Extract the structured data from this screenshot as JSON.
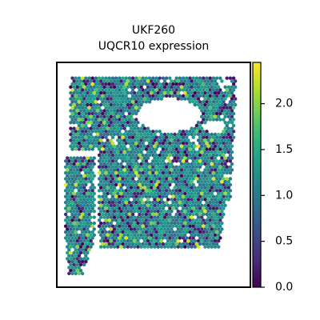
{
  "chart_data": {
    "type": "scatter",
    "subtype": "spatial-hexbin",
    "title_line1": "UKF260",
    "title_line2": "UQCR10 expression",
    "xlabel": "",
    "ylabel": "",
    "colormap": "viridis",
    "colorbar": {
      "min": 0.0,
      "max": 2.45,
      "ticks": [
        0.0,
        0.5,
        1.0,
        1.5,
        2.0
      ],
      "tick_labels": [
        "0.0",
        "0.5",
        "1.0",
        "1.5",
        "2.0"
      ]
    },
    "grid": false,
    "legend": "none",
    "value_distribution": {
      "min": 0.0,
      "max": 2.45,
      "typical": 1.1
    }
  },
  "colors": {
    "viridis": [
      "#440154",
      "#482878",
      "#3e4989",
      "#31688e",
      "#26828e",
      "#1f9e89",
      "#35b779",
      "#6ece58",
      "#b5de2b",
      "#fde725"
    ],
    "frame": "#000000",
    "background": "#ffffff"
  }
}
